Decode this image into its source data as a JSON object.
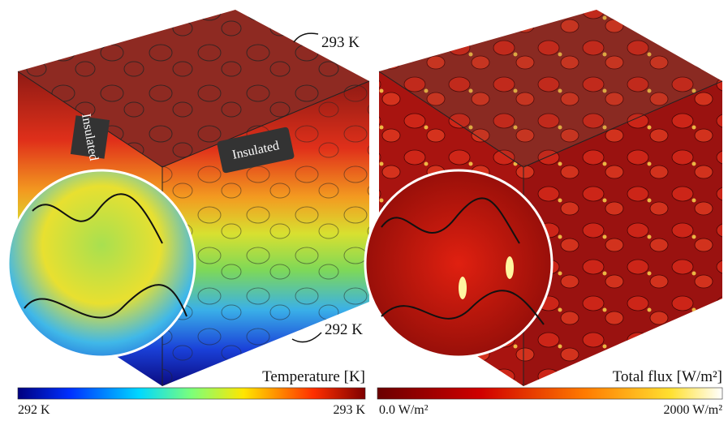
{
  "left_panel": {
    "top_annotation": "293 K",
    "bottom_annotation": "292 K",
    "labels": [
      "Insulated",
      "Insulated"
    ],
    "caption": "Temperature [K]",
    "colorbar": {
      "min_label": "292 K",
      "max_label": "293 K"
    }
  },
  "right_panel": {
    "caption": "Total flux [W/m²]",
    "colorbar": {
      "min_label": "0.0 W/m²",
      "max_label": "2000 W/m²"
    }
  }
}
